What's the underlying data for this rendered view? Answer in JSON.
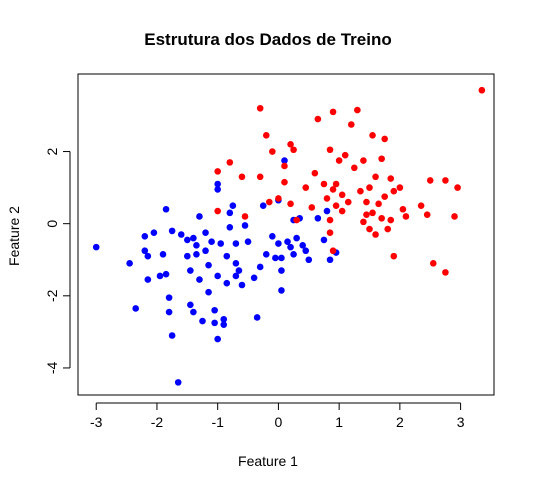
{
  "chart_data": {
    "type": "scatter",
    "title": "Estrutura dos Dados de Treino",
    "xlabel": "Feature 1",
    "ylabel": "Feature 2",
    "xlim": [
      -3.3,
      3.55
    ],
    "ylim": [
      -4.75,
      4.15
    ],
    "xticks": [
      -3,
      -2,
      -1,
      0,
      1,
      2,
      3
    ],
    "xtick_labels": [
      "-3",
      "-2",
      "-1",
      "0",
      "1",
      "2",
      "3"
    ],
    "yticks": [
      -4,
      -2,
      0,
      2
    ],
    "ytick_labels": [
      "-4",
      "-2",
      "0",
      "2"
    ],
    "grid": false,
    "legend": "none",
    "series": [
      {
        "color": "#0000ff",
        "points": [
          [
            -3.0,
            -0.65
          ],
          [
            -2.45,
            -1.1
          ],
          [
            -2.35,
            -2.35
          ],
          [
            -2.2,
            -0.35
          ],
          [
            -2.2,
            -0.75
          ],
          [
            -2.15,
            -0.9
          ],
          [
            -2.15,
            -1.55
          ],
          [
            -2.05,
            -0.25
          ],
          [
            -1.95,
            -1.45
          ],
          [
            -1.9,
            -0.85
          ],
          [
            -1.85,
            0.4
          ],
          [
            -1.85,
            -1.4
          ],
          [
            -1.8,
            -2.05
          ],
          [
            -1.8,
            -2.45
          ],
          [
            -1.75,
            -0.2
          ],
          [
            -1.75,
            -3.1
          ],
          [
            -1.65,
            -4.4
          ],
          [
            -1.6,
            -0.3
          ],
          [
            -1.5,
            -0.45
          ],
          [
            -1.5,
            -0.9
          ],
          [
            -1.45,
            -1.3
          ],
          [
            -1.45,
            -2.25
          ],
          [
            -1.4,
            -0.4
          ],
          [
            -1.4,
            -2.45
          ],
          [
            -1.35,
            -0.6
          ],
          [
            -1.35,
            -0.85
          ],
          [
            -1.3,
            0.2
          ],
          [
            -1.3,
            -1.55
          ],
          [
            -1.25,
            -2.7
          ],
          [
            -1.2,
            -0.25
          ],
          [
            -1.2,
            -0.75
          ],
          [
            -1.15,
            -1.15
          ],
          [
            -1.15,
            -1.9
          ],
          [
            -1.1,
            -0.5
          ],
          [
            -1.05,
            -2.4
          ],
          [
            -1.05,
            -2.75
          ],
          [
            -1.0,
            0.95
          ],
          [
            -1.0,
            1.1
          ],
          [
            -1.0,
            -1.45
          ],
          [
            -1.0,
            -3.2
          ],
          [
            -0.95,
            -0.55
          ],
          [
            -0.9,
            -2.65
          ],
          [
            -0.9,
            -2.8
          ],
          [
            -0.85,
            -0.9
          ],
          [
            -0.85,
            -1.65
          ],
          [
            -0.8,
            0.3
          ],
          [
            -0.8,
            -0.1
          ],
          [
            -0.75,
            0.5
          ],
          [
            -0.7,
            -0.55
          ],
          [
            -0.7,
            -1.1
          ],
          [
            -0.7,
            -1.45
          ],
          [
            -0.65,
            -1.3
          ],
          [
            -0.6,
            -1.7
          ],
          [
            -0.55,
            -0.05
          ],
          [
            -0.5,
            -0.5
          ],
          [
            -0.4,
            -1.5
          ],
          [
            -0.35,
            -2.6
          ],
          [
            -0.3,
            -1.2
          ],
          [
            -0.25,
            0.5
          ],
          [
            -0.2,
            -0.85
          ],
          [
            -0.1,
            -0.35
          ],
          [
            -0.05,
            -0.95
          ],
          [
            0.0,
            0.65
          ],
          [
            0.0,
            -0.55
          ],
          [
            0.05,
            -0.95
          ],
          [
            0.05,
            -1.3
          ],
          [
            0.05,
            -1.85
          ],
          [
            0.1,
            1.75
          ],
          [
            0.15,
            -0.5
          ],
          [
            0.2,
            -0.65
          ],
          [
            0.25,
            0.1
          ],
          [
            0.25,
            -0.85
          ],
          [
            0.3,
            -0.4
          ],
          [
            0.35,
            0.15
          ],
          [
            0.4,
            -0.6
          ],
          [
            0.45,
            -0.75
          ],
          [
            0.5,
            -1.0
          ],
          [
            0.65,
            0.15
          ],
          [
            0.75,
            -0.45
          ],
          [
            0.8,
            0.35
          ],
          [
            0.85,
            -1.0
          ],
          [
            0.95,
            -0.8
          ]
        ]
      },
      {
        "color": "#ff0000",
        "points": [
          [
            -1.0,
            1.45
          ],
          [
            -1.0,
            0.35
          ],
          [
            -0.8,
            1.7
          ],
          [
            -0.6,
            1.3
          ],
          [
            -0.55,
            0.2
          ],
          [
            -0.3,
            3.2
          ],
          [
            -0.3,
            1.3
          ],
          [
            -0.2,
            2.45
          ],
          [
            -0.15,
            0.6
          ],
          [
            -0.1,
            2.0
          ],
          [
            0.0,
            0.7
          ],
          [
            0.1,
            1.6
          ],
          [
            0.1,
            1.15
          ],
          [
            0.2,
            2.2
          ],
          [
            0.2,
            0.55
          ],
          [
            0.25,
            2.05
          ],
          [
            0.3,
            0.1
          ],
          [
            0.45,
            1.0
          ],
          [
            0.55,
            0.45
          ],
          [
            0.6,
            1.4
          ],
          [
            0.65,
            2.9
          ],
          [
            0.75,
            1.1
          ],
          [
            0.8,
            0.7
          ],
          [
            0.85,
            2.05
          ],
          [
            0.85,
            0.1
          ],
          [
            0.9,
            0.95
          ],
          [
            0.95,
            0.5
          ],
          [
            1.0,
            1.75
          ],
          [
            1.05,
            0.35
          ],
          [
            1.05,
            0.8
          ],
          [
            1.1,
            1.9
          ],
          [
            1.15,
            0.6
          ],
          [
            1.2,
            2.75
          ],
          [
            1.25,
            1.55
          ],
          [
            1.3,
            3.15
          ],
          [
            1.35,
            0.9
          ],
          [
            1.4,
            1.75
          ],
          [
            1.4,
            0.05
          ],
          [
            1.45,
            0.6
          ],
          [
            1.5,
            1.0
          ],
          [
            1.5,
            -0.15
          ],
          [
            1.55,
            2.45
          ],
          [
            1.55,
            0.3
          ],
          [
            1.6,
            1.3
          ],
          [
            1.6,
            -0.3
          ],
          [
            1.65,
            0.55
          ],
          [
            1.7,
            1.8
          ],
          [
            1.7,
            0.15
          ],
          [
            1.75,
            2.35
          ],
          [
            1.75,
            0.75
          ],
          [
            1.8,
            -0.15
          ],
          [
            1.85,
            1.25
          ],
          [
            1.85,
            0.1
          ],
          [
            1.9,
            0.9
          ],
          [
            1.9,
            -0.9
          ],
          [
            2.0,
            1.0
          ],
          [
            2.05,
            0.4
          ],
          [
            2.1,
            0.2
          ],
          [
            2.35,
            0.5
          ],
          [
            2.45,
            0.25
          ],
          [
            2.5,
            1.2
          ],
          [
            2.55,
            -1.1
          ],
          [
            2.75,
            1.2
          ],
          [
            2.75,
            -1.35
          ],
          [
            2.9,
            0.2
          ],
          [
            2.95,
            1.0
          ],
          [
            3.35,
            3.7
          ],
          [
            0.9,
            3.1
          ],
          [
            1.45,
            0.25
          ],
          [
            0.9,
            -0.75
          ],
          [
            0.95,
            1.1
          ],
          [
            0.85,
            -0.25
          ]
        ]
      }
    ]
  }
}
